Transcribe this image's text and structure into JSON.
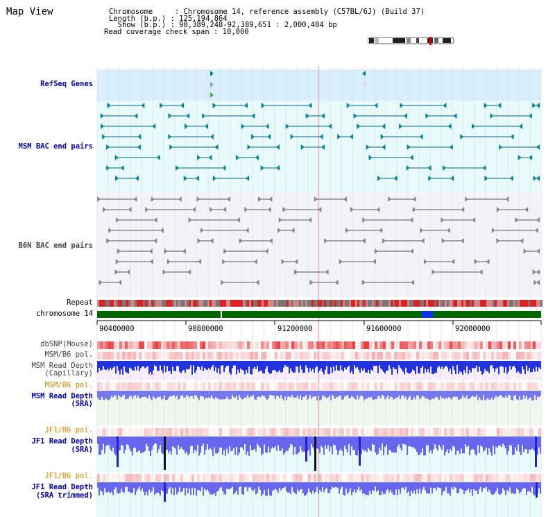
{
  "title": "Map View",
  "info": {
    "line1": "Chromosome     : Chromosome 14, reference assembly (C57BL/6J) (Build 37)",
    "line2": "Length (b.p.) : 125,194,864",
    "line3": "  Show (b.p.) : 90,389,248-92,389,651 : 2,000,404 bp",
    "line4": "Read coverage check span : 10,000"
  },
  "tracks": {
    "refseq": "RefSeq Genes",
    "msm_bac": "MSM BAC end pairs",
    "b6n_bac": "B6N BAC end pairs",
    "repeat": "Repeat",
    "chromosome": "chromosome 14",
    "dbsnp": "dbSNP(Mouse)",
    "msm_b6_pol_1": "MSM/B6 pol.",
    "msm_read_depth_cap_1": "MSM Read Depth",
    "msm_read_depth_cap_2": "(Capillary)",
    "msm_b6_pol_2": "MSM/B6 pol.",
    "msm_read_depth_sra_1": "MSM Read Depth",
    "msm_read_depth_sra_2": "(SRA)",
    "jf1_b6_pol_1": "JF1/B6 pol.",
    "jf1_read_depth_sra_1": "JF1 Read Depth",
    "jf1_read_depth_sra_2": "(SRA)",
    "jf1_b6_pol_2": "JF1/B6 pol.",
    "jf1_read_depth_trim_1": "JF1 Read Depth",
    "jf1_read_depth_trim_2": "(SRA trimmed)"
  },
  "axis_ticks": [
    "90400000",
    "90800000",
    "91200000",
    "91600000",
    "92000000"
  ],
  "colors": {
    "refseq_bg": "#d8eefa",
    "bac_bg": "#e8fafa",
    "b6n_bg": "#f4f4f8",
    "chromosome_bar": "#006600",
    "gene_arrow": "#008888",
    "bac_line_msm": "#006688",
    "bac_line_b6n": "#555555",
    "depth_blue": "#2222dd",
    "pol_red": "#ee3333"
  }
}
